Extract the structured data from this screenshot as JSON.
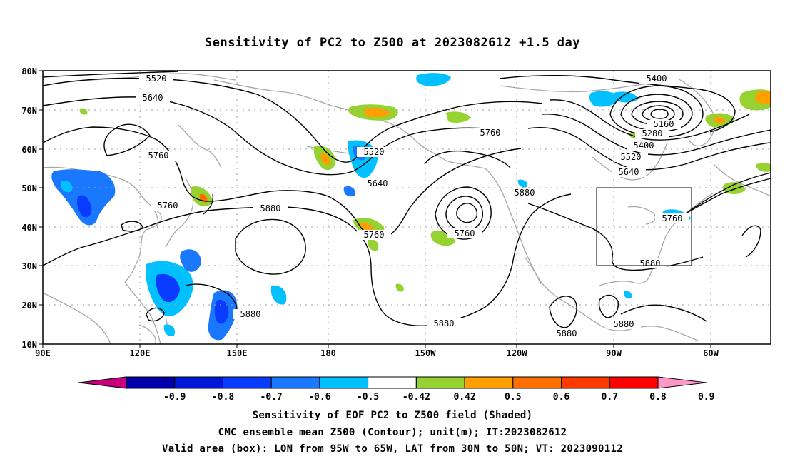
{
  "title": "Sensitivity of PC2 to Z500 at 2023082612 +1.5 day",
  "lat_labels": [
    "80N",
    "70N",
    "60N",
    "50N",
    "40N",
    "30N",
    "20N",
    "10N"
  ],
  "lon_labels": [
    "90E",
    "120E",
    "150E",
    "180",
    "150W",
    "120W",
    "90W",
    "60W"
  ],
  "contour_labels": [
    "5520",
    "5640",
    "5760",
    "5760",
    "5880",
    "5880",
    "5520",
    "5640",
    "5760",
    "5760",
    "5760",
    "5880",
    "5400",
    "5160",
    "5280",
    "5400",
    "5520",
    "5640",
    "5760",
    "5880",
    "5880",
    "5880",
    "5880"
  ],
  "colorbar": {
    "ticks": [
      "-0.9",
      "-0.8",
      "-0.7",
      "-0.6",
      "-0.5",
      "-0.42",
      "0.42",
      "0.5",
      "0.6",
      "0.7",
      "0.8",
      "0.9"
    ],
    "colors": [
      "#c8007c",
      "#0000aa",
      "#0018d8",
      "#0a3cff",
      "#1a78ff",
      "#00c0ff",
      "#ffffff",
      "#96d232",
      "#ffa000",
      "#ff6e00",
      "#ff3a00",
      "#ff0000",
      "#ff96c8"
    ]
  },
  "captions": {
    "line1": "Sensitivity of EOF PC2 to Z500 field (Shaded)",
    "line2": "CMC ensemble mean Z500 (Contour); unit(m); IT:2023082612",
    "line3": "Valid area (box): LON from 95W to 65W, LAT from 30N to 50N; VT: 2023090112"
  }
}
